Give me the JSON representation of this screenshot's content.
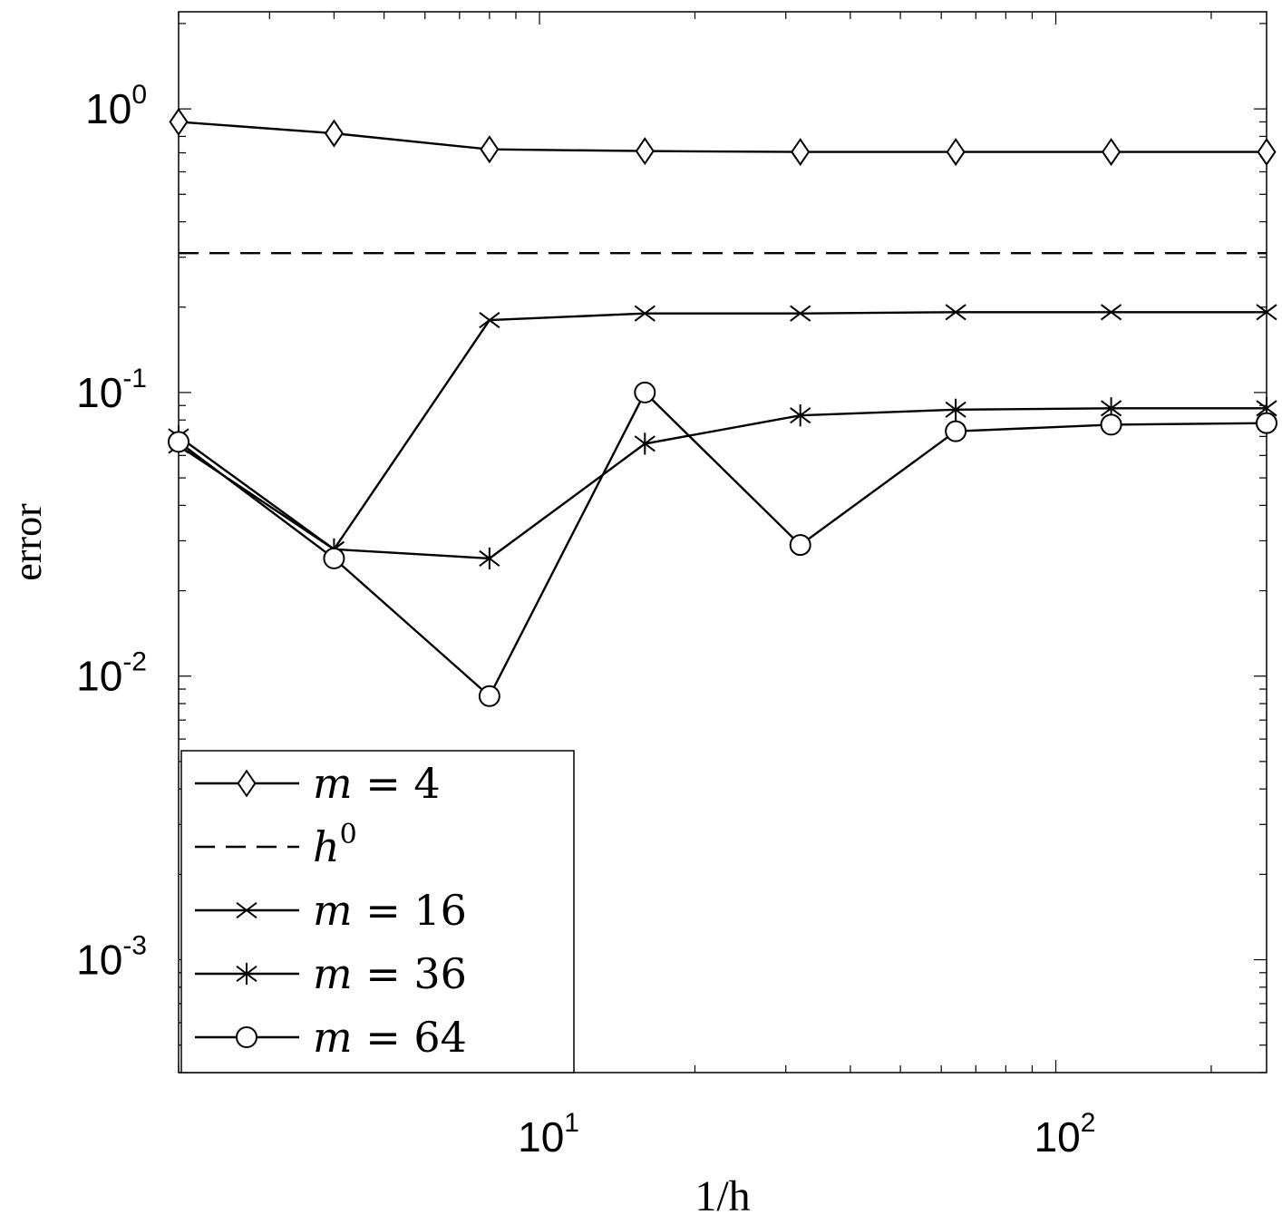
{
  "chart_data": {
    "type": "line",
    "xscale": "log",
    "yscale": "log",
    "xlim": [
      2,
      256
    ],
    "ylim": [
      0.0004,
      2.2
    ],
    "xlabel": "1/h",
    "ylabel": "error",
    "xticks": [
      {
        "value": 10,
        "base": "10",
        "exp": "1"
      },
      {
        "value": 100,
        "base": "10",
        "exp": "2"
      }
    ],
    "yticks": [
      {
        "value": 1,
        "base": "10",
        "exp": "0"
      },
      {
        "value": 0.1,
        "base": "10",
        "exp": "-1"
      },
      {
        "value": 0.01,
        "base": "10",
        "exp": "-2"
      },
      {
        "value": 0.001,
        "base": "10",
        "exp": "-3"
      }
    ],
    "grid": false,
    "legend_position": "bottom-left",
    "x": [
      2,
      4,
      8,
      16,
      32,
      64,
      128,
      256
    ],
    "series": [
      {
        "name": "m = 4",
        "name_parts": [
          "m",
          " = 4"
        ],
        "marker": "diamond",
        "dash": "solid",
        "values": [
          0.9,
          0.82,
          0.72,
          0.71,
          0.705,
          0.705,
          0.705,
          0.705
        ]
      },
      {
        "name": "h^0",
        "name_parts": [
          "h",
          "0"
        ],
        "marker": "none",
        "dash": "dashed",
        "values": [
          0.31,
          0.31,
          0.31,
          0.31,
          0.31,
          0.31,
          0.31,
          0.31
        ]
      },
      {
        "name": "m = 16",
        "name_parts": [
          "m",
          " = 16"
        ],
        "marker": "x",
        "dash": "solid",
        "values": [
          0.065,
          0.028,
          0.18,
          0.19,
          0.19,
          0.192,
          0.192,
          0.192
        ]
      },
      {
        "name": "m = 36",
        "name_parts": [
          "m",
          " = 36"
        ],
        "marker": "star",
        "dash": "solid",
        "values": [
          0.07,
          0.028,
          0.026,
          0.066,
          0.083,
          0.087,
          0.088,
          0.088
        ]
      },
      {
        "name": "m = 64",
        "name_parts": [
          "m",
          " = 64"
        ],
        "marker": "circle",
        "dash": "solid",
        "values": [
          0.067,
          0.026,
          0.0085,
          0.1,
          0.029,
          0.073,
          0.077,
          0.078
        ]
      }
    ]
  }
}
